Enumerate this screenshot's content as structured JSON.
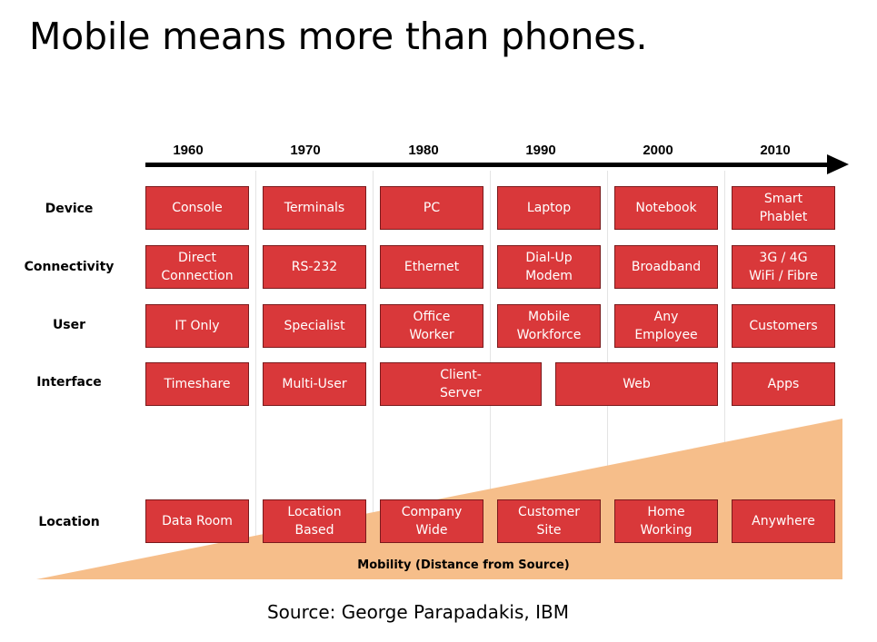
{
  "title": "Mobile means more than phones.",
  "years": [
    "1960",
    "1970",
    "1980",
    "1990",
    "2000",
    "2010"
  ],
  "rows": {
    "device": "Device",
    "connectivity": "Connectivity",
    "user": "User",
    "interface": "Interface",
    "location": "Location"
  },
  "boxes": {
    "device": [
      "Console",
      "Terminals",
      "PC",
      "Laptop",
      "Notebook",
      "Smart\nPhablet"
    ],
    "connectivity": [
      "Direct\nConnection",
      "RS-232",
      "Ethernet",
      "Dial-Up\nModem",
      "Broadband",
      "3G / 4G\nWiFi / Fibre"
    ],
    "user": [
      "IT Only",
      "Specialist",
      "Office\nWorker",
      "Mobile\nWorkforce",
      "Any\nEmployee",
      "Customers"
    ],
    "interface": [
      "Timeshare",
      "Multi-User",
      "Client-\nServer",
      "Web",
      "Apps"
    ],
    "location": [
      "Data Room",
      "Location\nBased",
      "Company\nWide",
      "Customer\nSite",
      "Home\nWorking",
      "Anywhere"
    ]
  },
  "mobility_label": "Mobility (Distance from Source)",
  "source": "Source: George Parapadakis, IBM",
  "colors": {
    "box": "#d9383a",
    "box_border": "#7a1a1c",
    "wedge": "#f6be8a",
    "arrow": "#000000"
  }
}
